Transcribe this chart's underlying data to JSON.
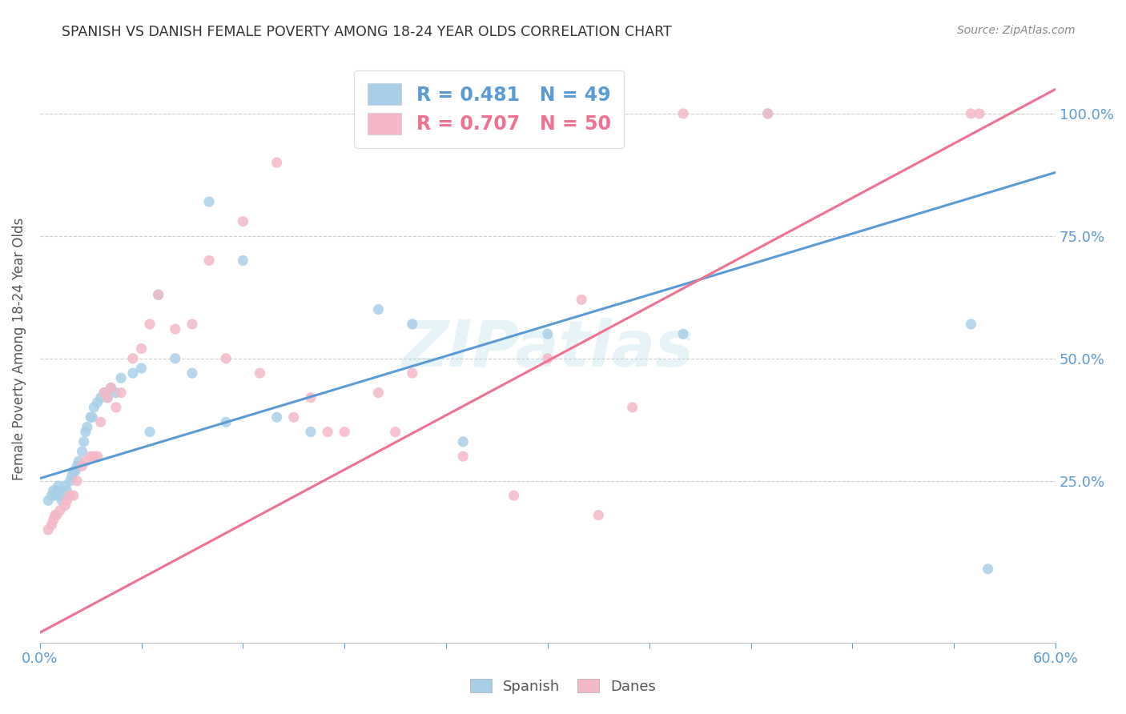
{
  "title": "SPANISH VS DANISH FEMALE POVERTY AMONG 18-24 YEAR OLDS CORRELATION CHART",
  "source": "Source: ZipAtlas.com",
  "ylabel": "Female Poverty Among 18-24 Year Olds",
  "xlim": [
    0.0,
    0.6
  ],
  "ylim": [
    -0.08,
    1.12
  ],
  "yticks_right": [
    0.25,
    0.5,
    0.75,
    1.0
  ],
  "ytick_labels_right": [
    "25.0%",
    "50.0%",
    "75.0%",
    "100.0%"
  ],
  "blue_color": "#a8cfe8",
  "pink_color": "#f4b8c8",
  "blue_line_color": "#5b9bd5",
  "pink_line_color": "#f07090",
  "legend_blue_R": "R = 0.481",
  "legend_blue_N": "N = 49",
  "legend_pink_R": "R = 0.707",
  "legend_pink_N": "N = 50",
  "watermark": "ZIPatlas",
  "blue_line": {
    "x0": 0.0,
    "y0": 0.255,
    "x1": 0.6,
    "y1": 0.88
  },
  "pink_line": {
    "x0": 0.0,
    "y0": -0.06,
    "x1": 0.6,
    "y1": 1.05
  },
  "spanish_x": [
    0.005,
    0.007,
    0.008,
    0.009,
    0.01,
    0.011,
    0.012,
    0.013,
    0.015,
    0.016,
    0.018,
    0.019,
    0.02,
    0.021,
    0.022,
    0.023,
    0.025,
    0.026,
    0.027,
    0.028,
    0.03,
    0.031,
    0.032,
    0.034,
    0.036,
    0.038,
    0.04,
    0.042,
    0.045,
    0.048,
    0.055,
    0.06,
    0.065,
    0.07,
    0.08,
    0.09,
    0.1,
    0.11,
    0.12,
    0.14,
    0.16,
    0.2,
    0.22,
    0.25,
    0.3,
    0.38,
    0.43,
    0.55,
    0.56
  ],
  "spanish_y": [
    0.21,
    0.22,
    0.23,
    0.22,
    0.23,
    0.24,
    0.22,
    0.21,
    0.24,
    0.23,
    0.25,
    0.26,
    0.27,
    0.27,
    0.28,
    0.29,
    0.31,
    0.33,
    0.35,
    0.36,
    0.38,
    0.38,
    0.4,
    0.41,
    0.42,
    0.43,
    0.42,
    0.44,
    0.43,
    0.46,
    0.47,
    0.48,
    0.35,
    0.63,
    0.5,
    0.47,
    0.82,
    0.37,
    0.7,
    0.38,
    0.35,
    0.6,
    0.57,
    0.33,
    0.55,
    0.55,
    1.0,
    0.57,
    0.07
  ],
  "danes_x": [
    0.005,
    0.007,
    0.008,
    0.009,
    0.01,
    0.012,
    0.015,
    0.016,
    0.018,
    0.02,
    0.022,
    0.025,
    0.027,
    0.03,
    0.032,
    0.034,
    0.036,
    0.038,
    0.04,
    0.042,
    0.045,
    0.048,
    0.055,
    0.06,
    0.065,
    0.07,
    0.08,
    0.09,
    0.1,
    0.11,
    0.12,
    0.13,
    0.14,
    0.15,
    0.16,
    0.17,
    0.18,
    0.2,
    0.21,
    0.22,
    0.25,
    0.28,
    0.3,
    0.32,
    0.33,
    0.35,
    0.38,
    0.43,
    0.55,
    0.555
  ],
  "danes_y": [
    0.15,
    0.16,
    0.17,
    0.18,
    0.18,
    0.19,
    0.2,
    0.21,
    0.22,
    0.22,
    0.25,
    0.28,
    0.29,
    0.3,
    0.3,
    0.3,
    0.37,
    0.43,
    0.42,
    0.44,
    0.4,
    0.43,
    0.5,
    0.52,
    0.57,
    0.63,
    0.56,
    0.57,
    0.7,
    0.5,
    0.78,
    0.47,
    0.9,
    0.38,
    0.42,
    0.35,
    0.35,
    0.43,
    0.35,
    0.47,
    0.3,
    0.22,
    0.5,
    0.62,
    0.18,
    0.4,
    1.0,
    1.0,
    1.0,
    1.0
  ]
}
